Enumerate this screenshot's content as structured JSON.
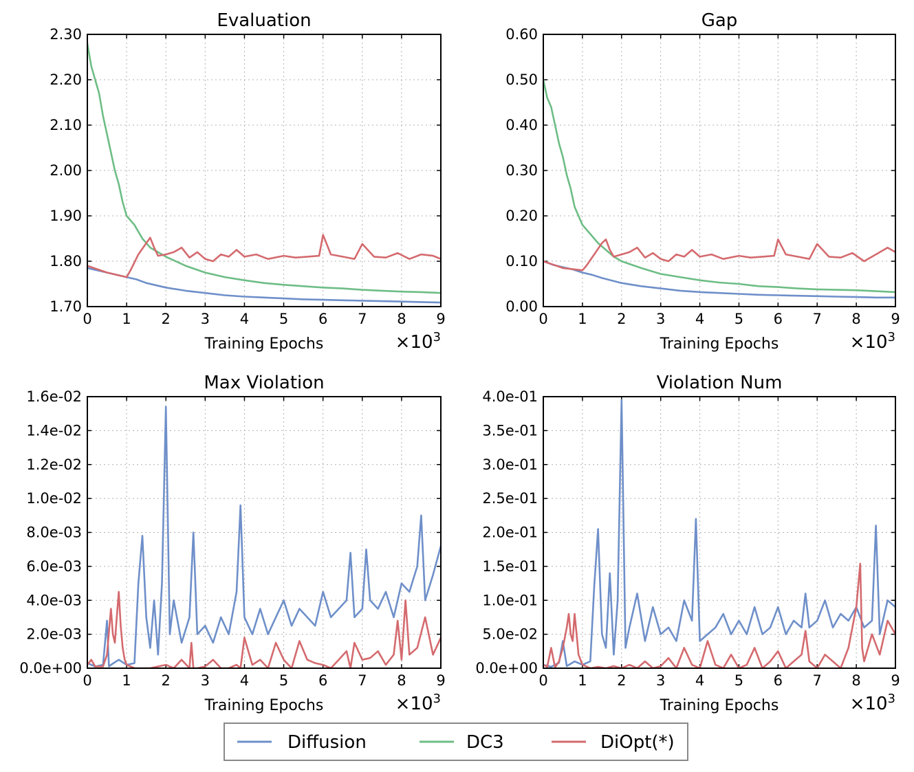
{
  "chart_data": [
    {
      "id": "evaluation",
      "type": "line",
      "title": "Evaluation",
      "xlabel": "Training Epochs",
      "x_multiplier": "×10",
      "x_multiplier_exp": "3",
      "xlim": [
        0,
        9
      ],
      "ylim": [
        1.7,
        2.3
      ],
      "x_ticks": [
        "0",
        "1",
        "2",
        "3",
        "4",
        "5",
        "6",
        "7",
        "8",
        "9"
      ],
      "y_ticks": [
        {
          "v": 1.7,
          "label": "1.70"
        },
        {
          "v": 1.8,
          "label": "1.80"
        },
        {
          "v": 1.9,
          "label": "1.90"
        },
        {
          "v": 2.0,
          "label": "2.00"
        },
        {
          "v": 2.1,
          "label": "2.10"
        },
        {
          "v": 2.2,
          "label": "2.20"
        },
        {
          "v": 2.3,
          "label": "2.30"
        }
      ],
      "series": [
        {
          "name": "Diffusion",
          "x": [
            0,
            0.25,
            0.5,
            0.75,
            1,
            1.25,
            1.5,
            2,
            2.5,
            3,
            3.5,
            4,
            4.5,
            5,
            5.5,
            6,
            6.5,
            7,
            7.5,
            8,
            8.5,
            9
          ],
          "y": [
            1.785,
            1.78,
            1.775,
            1.77,
            1.765,
            1.76,
            1.752,
            1.742,
            1.735,
            1.73,
            1.725,
            1.722,
            1.72,
            1.718,
            1.716,
            1.715,
            1.714,
            1.713,
            1.712,
            1.711,
            1.71,
            1.709
          ]
        },
        {
          "name": "DC3",
          "x": [
            0,
            0.1,
            0.2,
            0.3,
            0.4,
            0.5,
            0.6,
            0.7,
            0.8,
            0.9,
            1,
            1.2,
            1.4,
            1.6,
            1.8,
            2,
            2.5,
            3,
            3.5,
            4,
            4.5,
            5,
            5.5,
            6,
            6.5,
            7,
            7.5,
            8,
            8.5,
            9
          ],
          "y": [
            2.28,
            2.23,
            2.2,
            2.17,
            2.12,
            2.08,
            2.04,
            2.0,
            1.97,
            1.93,
            1.9,
            1.88,
            1.85,
            1.83,
            1.82,
            1.81,
            1.79,
            1.775,
            1.765,
            1.758,
            1.752,
            1.748,
            1.745,
            1.742,
            1.74,
            1.737,
            1.735,
            1.733,
            1.732,
            1.73
          ]
        },
        {
          "name": "DiOpt(*)",
          "x": [
            0,
            0.5,
            1,
            1.1,
            1.3,
            1.5,
            1.6,
            1.7,
            1.8,
            2,
            2.2,
            2.4,
            2.6,
            2.8,
            3,
            3.2,
            3.4,
            3.6,
            3.8,
            4,
            4.3,
            4.6,
            5,
            5.3,
            5.6,
            5.9,
            6,
            6.2,
            6.5,
            6.8,
            7,
            7.3,
            7.6,
            7.9,
            8.2,
            8.5,
            8.8,
            9
          ],
          "y": [
            1.79,
            1.775,
            1.765,
            1.78,
            1.815,
            1.84,
            1.852,
            1.83,
            1.812,
            1.815,
            1.82,
            1.83,
            1.808,
            1.82,
            1.805,
            1.8,
            1.815,
            1.81,
            1.825,
            1.81,
            1.815,
            1.805,
            1.812,
            1.808,
            1.81,
            1.812,
            1.858,
            1.815,
            1.81,
            1.805,
            1.838,
            1.81,
            1.808,
            1.818,
            1.805,
            1.815,
            1.812,
            1.805
          ]
        }
      ]
    },
    {
      "id": "gap",
      "type": "line",
      "title": "Gap",
      "xlabel": "Training Epochs",
      "x_multiplier": "×10",
      "x_multiplier_exp": "3",
      "xlim": [
        0,
        9
      ],
      "ylim": [
        0.0,
        0.6
      ],
      "x_ticks": [
        "0",
        "1",
        "2",
        "3",
        "4",
        "5",
        "6",
        "7",
        "8",
        "9"
      ],
      "y_ticks": [
        {
          "v": 0.0,
          "label": "0.00"
        },
        {
          "v": 0.1,
          "label": "0.10"
        },
        {
          "v": 0.2,
          "label": "0.20"
        },
        {
          "v": 0.3,
          "label": "0.30"
        },
        {
          "v": 0.4,
          "label": "0.40"
        },
        {
          "v": 0.5,
          "label": "0.50"
        },
        {
          "v": 0.6,
          "label": "0.60"
        }
      ],
      "series": [
        {
          "name": "Diffusion",
          "x": [
            0,
            0.25,
            0.5,
            0.75,
            1,
            1.25,
            1.5,
            2,
            2.5,
            3,
            3.5,
            4,
            4.5,
            5,
            5.5,
            6,
            6.5,
            7,
            7.5,
            8,
            8.5,
            9
          ],
          "y": [
            0.1,
            0.092,
            0.087,
            0.082,
            0.075,
            0.07,
            0.063,
            0.052,
            0.045,
            0.04,
            0.035,
            0.032,
            0.03,
            0.028,
            0.026,
            0.025,
            0.024,
            0.023,
            0.022,
            0.021,
            0.02,
            0.02
          ]
        },
        {
          "name": "DC3",
          "x": [
            0,
            0.1,
            0.2,
            0.3,
            0.4,
            0.5,
            0.6,
            0.7,
            0.8,
            0.9,
            1,
            1.2,
            1.4,
            1.6,
            1.8,
            2,
            2.5,
            3,
            3.5,
            4,
            4.5,
            5,
            5.5,
            6,
            6.5,
            7,
            7.5,
            8,
            8.5,
            9
          ],
          "y": [
            0.5,
            0.46,
            0.44,
            0.4,
            0.36,
            0.33,
            0.29,
            0.26,
            0.22,
            0.2,
            0.18,
            0.16,
            0.14,
            0.125,
            0.11,
            0.1,
            0.085,
            0.072,
            0.065,
            0.058,
            0.053,
            0.05,
            0.045,
            0.043,
            0.04,
            0.038,
            0.037,
            0.036,
            0.034,
            0.032
          ]
        },
        {
          "name": "DiOpt(*)",
          "x": [
            0,
            0.5,
            1,
            1.1,
            1.3,
            1.5,
            1.6,
            1.7,
            1.8,
            2,
            2.2,
            2.4,
            2.6,
            2.8,
            3,
            3.2,
            3.4,
            3.6,
            3.8,
            4,
            4.3,
            4.6,
            5,
            5.3,
            5.6,
            5.9,
            6,
            6.2,
            6.5,
            6.8,
            7,
            7.3,
            7.6,
            7.9,
            8.2,
            8.5,
            8.8,
            9
          ],
          "y": [
            0.1,
            0.085,
            0.08,
            0.09,
            0.115,
            0.14,
            0.148,
            0.125,
            0.11,
            0.115,
            0.12,
            0.13,
            0.108,
            0.118,
            0.105,
            0.1,
            0.115,
            0.11,
            0.125,
            0.11,
            0.115,
            0.105,
            0.112,
            0.108,
            0.11,
            0.112,
            0.148,
            0.115,
            0.11,
            0.105,
            0.138,
            0.11,
            0.108,
            0.118,
            0.1,
            0.115,
            0.13,
            0.12
          ]
        }
      ]
    },
    {
      "id": "max_violation",
      "type": "line",
      "title": "Max Violation",
      "xlabel": "Training Epochs",
      "x_multiplier": "×10",
      "x_multiplier_exp": "3",
      "xlim": [
        0,
        9
      ],
      "ylim": [
        0,
        0.016
      ],
      "x_ticks": [
        "0",
        "1",
        "2",
        "3",
        "4",
        "5",
        "6",
        "7",
        "8",
        "9"
      ],
      "y_ticks": [
        {
          "v": 0.0,
          "label": "0.0e+00"
        },
        {
          "v": 0.002,
          "label": "2.0e-03"
        },
        {
          "v": 0.004,
          "label": "4.0e-03"
        },
        {
          "v": 0.006,
          "label": "6.0e-03"
        },
        {
          "v": 0.008,
          "label": "8.0e-03"
        },
        {
          "v": 0.01,
          "label": "1.0e-02"
        },
        {
          "v": 0.012,
          "label": "1.2e-02"
        },
        {
          "v": 0.014,
          "label": "1.4e-02"
        },
        {
          "v": 0.016,
          "label": "1.6e-02"
        }
      ],
      "series": [
        {
          "name": "Diffusion",
          "x": [
            0,
            0.2,
            0.4,
            0.5,
            0.55,
            0.6,
            0.8,
            1,
            1.2,
            1.3,
            1.4,
            1.5,
            1.6,
            1.7,
            1.8,
            1.9,
            2,
            2.1,
            2.2,
            2.4,
            2.6,
            2.7,
            2.8,
            3,
            3.2,
            3.4,
            3.6,
            3.8,
            3.9,
            4,
            4.2,
            4.4,
            4.6,
            4.8,
            5,
            5.2,
            5.4,
            5.6,
            5.8,
            6,
            6.2,
            6.4,
            6.6,
            6.7,
            6.8,
            7,
            7.1,
            7.2,
            7.4,
            7.6,
            7.8,
            8,
            8.2,
            8.4,
            8.5,
            8.6,
            8.8,
            9
          ],
          "y": [
            0.0003,
            0.0001,
            0.0002,
            0.0028,
            0.0001,
            0.0002,
            0.0005,
            0.0002,
            0.0003,
            0.005,
            0.0078,
            0.003,
            0.0012,
            0.004,
            0.0008,
            0.005,
            0.0154,
            0.002,
            0.004,
            0.0015,
            0.003,
            0.008,
            0.002,
            0.0025,
            0.0015,
            0.003,
            0.002,
            0.0045,
            0.0096,
            0.003,
            0.002,
            0.0035,
            0.002,
            0.003,
            0.004,
            0.0025,
            0.0035,
            0.003,
            0.0025,
            0.0045,
            0.003,
            0.0035,
            0.004,
            0.0068,
            0.003,
            0.0035,
            0.007,
            0.004,
            0.0035,
            0.0045,
            0.003,
            0.005,
            0.0045,
            0.006,
            0.009,
            0.004,
            0.0055,
            0.0072
          ]
        },
        {
          "name": "DiOpt(*)",
          "x": [
            0,
            0.1,
            0.2,
            0.4,
            0.5,
            0.6,
            0.65,
            0.7,
            0.75,
            0.8,
            0.85,
            0.9,
            0.95,
            1.0,
            1.1,
            1.2,
            1.4,
            1.6,
            1.8,
            2.0,
            2.2,
            2.4,
            2.6,
            2.65,
            2.7,
            2.8,
            3.0,
            3.2,
            3.4,
            3.6,
            3.8,
            3.9,
            4.0,
            4.2,
            4.4,
            4.6,
            4.8,
            5.0,
            5.2,
            5.4,
            5.6,
            5.8,
            6.0,
            6.2,
            6.4,
            6.6,
            6.7,
            6.8,
            7.0,
            7.2,
            7.4,
            7.6,
            7.8,
            7.9,
            8.0,
            8.1,
            8.2,
            8.4,
            8.6,
            8.8,
            9.0
          ],
          "y": [
            0.0002,
            0.0005,
            0.0001,
            0.0001,
            0.0008,
            0.0035,
            0.002,
            0.0015,
            0.003,
            0.0045,
            0.0025,
            0.0012,
            0.0005,
            0.0002,
            0.0001,
            0.0,
            0.0,
            0.0,
            0.0001,
            0.0002,
            0.0,
            0.0005,
            0.0,
            0.0015,
            0.0,
            0.0,
            0.0001,
            0.0005,
            0.0,
            0.0,
            0.0002,
            0.0,
            0.0018,
            0.0002,
            0.0005,
            0.0,
            0.0015,
            0.0005,
            0.0,
            0.0016,
            0.0005,
            0.0003,
            0.0002,
            0.0,
            0.0005,
            0.001,
            0.0,
            0.0015,
            0.0005,
            0.0006,
            0.001,
            0.0002,
            0.0008,
            0.0028,
            0.0005,
            0.004,
            0.0008,
            0.0012,
            0.003,
            0.0008,
            0.0018
          ]
        }
      ]
    },
    {
      "id": "violation_num",
      "type": "line",
      "title": "Violation Num",
      "xlabel": "Training Epochs",
      "x_multiplier": "×10",
      "x_multiplier_exp": "3",
      "xlim": [
        0,
        9
      ],
      "ylim": [
        0,
        0.4
      ],
      "x_ticks": [
        "0",
        "1",
        "2",
        "3",
        "4",
        "5",
        "6",
        "7",
        "8",
        "9"
      ],
      "y_ticks": [
        {
          "v": 0.0,
          "label": "0.0e+00"
        },
        {
          "v": 0.05,
          "label": "5.0e-02"
        },
        {
          "v": 0.1,
          "label": "1.0e-01"
        },
        {
          "v": 0.15,
          "label": "1.5e-01"
        },
        {
          "v": 0.2,
          "label": "2.0e-01"
        },
        {
          "v": 0.25,
          "label": "2.5e-01"
        },
        {
          "v": 0.3,
          "label": "3.0e-01"
        },
        {
          "v": 0.35,
          "label": "3.5e-01"
        },
        {
          "v": 0.4,
          "label": "4.0e-01"
        }
      ],
      "series": [
        {
          "name": "Diffusion",
          "x": [
            0,
            0.2,
            0.4,
            0.5,
            0.6,
            0.8,
            1,
            1.2,
            1.3,
            1.4,
            1.5,
            1.6,
            1.7,
            1.8,
            1.9,
            2,
            2.1,
            2.2,
            2.4,
            2.6,
            2.8,
            3,
            3.2,
            3.4,
            3.6,
            3.8,
            3.9,
            4,
            4.2,
            4.4,
            4.6,
            4.8,
            5,
            5.2,
            5.4,
            5.6,
            5.8,
            6,
            6.2,
            6.4,
            6.6,
            6.7,
            6.8,
            7,
            7.2,
            7.4,
            7.6,
            7.8,
            8,
            8.2,
            8.4,
            8.5,
            8.6,
            8.8,
            9
          ],
          "y": [
            0.005,
            0.002,
            0.008,
            0.04,
            0.003,
            0.01,
            0.005,
            0.01,
            0.12,
            0.205,
            0.05,
            0.03,
            0.14,
            0.02,
            0.1,
            0.395,
            0.03,
            0.06,
            0.11,
            0.04,
            0.09,
            0.05,
            0.06,
            0.04,
            0.1,
            0.07,
            0.22,
            0.04,
            0.05,
            0.06,
            0.08,
            0.05,
            0.07,
            0.05,
            0.09,
            0.05,
            0.06,
            0.09,
            0.05,
            0.07,
            0.06,
            0.11,
            0.06,
            0.07,
            0.1,
            0.06,
            0.08,
            0.07,
            0.09,
            0.06,
            0.07,
            0.21,
            0.05,
            0.1,
            0.09
          ]
        },
        {
          "name": "DiOpt(*)",
          "x": [
            0,
            0.1,
            0.2,
            0.3,
            0.4,
            0.5,
            0.6,
            0.65,
            0.7,
            0.75,
            0.8,
            0.85,
            0.9,
            1,
            1.2,
            1.4,
            1.6,
            1.8,
            2,
            2.2,
            2.4,
            2.6,
            2.8,
            3,
            3.2,
            3.4,
            3.6,
            3.8,
            4,
            4.2,
            4.4,
            4.6,
            4.8,
            5,
            5.2,
            5.4,
            5.6,
            5.8,
            6,
            6.2,
            6.4,
            6.6,
            6.7,
            6.8,
            7,
            7.2,
            7.4,
            7.6,
            7.8,
            8,
            8.1,
            8.15,
            8.2,
            8.4,
            8.6,
            8.8,
            9
          ],
          "y": [
            0.005,
            0.002,
            0.03,
            0.001,
            0.01,
            0.03,
            0.06,
            0.08,
            0.05,
            0.04,
            0.08,
            0.05,
            0.02,
            0.005,
            0.0,
            0.002,
            0.0,
            0.003,
            0.0,
            0.005,
            0.0,
            0.01,
            0.0,
            0.003,
            0.015,
            0.0,
            0.03,
            0.005,
            0.0,
            0.04,
            0.005,
            0.0,
            0.02,
            0.0,
            0.005,
            0.03,
            0.0,
            0.01,
            0.025,
            0.0,
            0.01,
            0.02,
            0.055,
            0.01,
            0.0,
            0.02,
            0.01,
            0.0,
            0.03,
            0.09,
            0.154,
            0.03,
            0.01,
            0.05,
            0.02,
            0.07,
            0.05
          ]
        }
      ]
    }
  ],
  "legend": [
    {
      "name": "Diffusion",
      "color": "#6e8fc9"
    },
    {
      "name": "DC3",
      "color": "#6dbd85"
    },
    {
      "name": "DiOpt(*)",
      "color": "#d46a6e"
    }
  ]
}
